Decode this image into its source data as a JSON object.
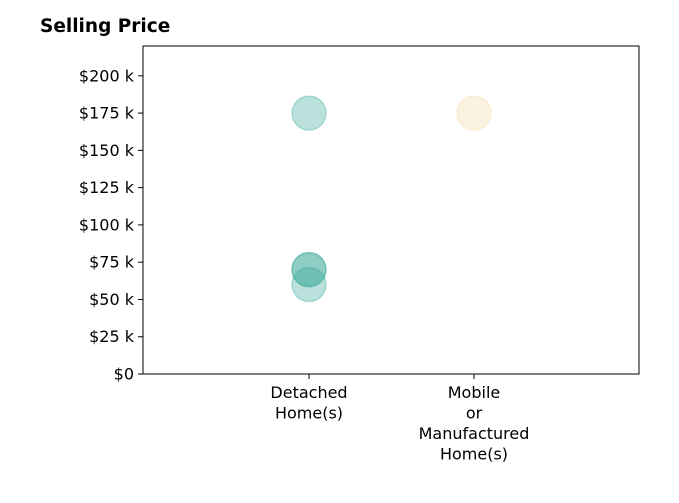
{
  "chart_data": {
    "type": "scatter",
    "title": "Selling Price",
    "xlabel": "",
    "ylabel": "",
    "categories": [
      [
        "Detached",
        "Home(s)"
      ],
      [
        "Mobile",
        "or",
        "Manufactured",
        "Home(s)"
      ]
    ],
    "ylim": [
      0,
      220000
    ],
    "yticks": [
      0,
      25000,
      50000,
      75000,
      100000,
      125000,
      150000,
      175000,
      200000
    ],
    "ytick_labels": [
      "$0",
      "$25 k",
      "$50 k",
      "$75 k",
      "$100 k",
      "$125 k",
      "$150 k",
      "$175 k",
      "$200 k"
    ],
    "grid": false,
    "legend": "none",
    "points": [
      {
        "category": 0,
        "y": 175000,
        "color": "#3aa899"
      },
      {
        "category": 0,
        "y": 60000,
        "color": "#3aa899"
      },
      {
        "category": 0,
        "y": 70000,
        "color": "#3aa899"
      },
      {
        "category": 0,
        "y": 70000,
        "color": "#3aa899"
      },
      {
        "category": 1,
        "y": 175000,
        "color": "#f5d9a6"
      }
    ]
  }
}
